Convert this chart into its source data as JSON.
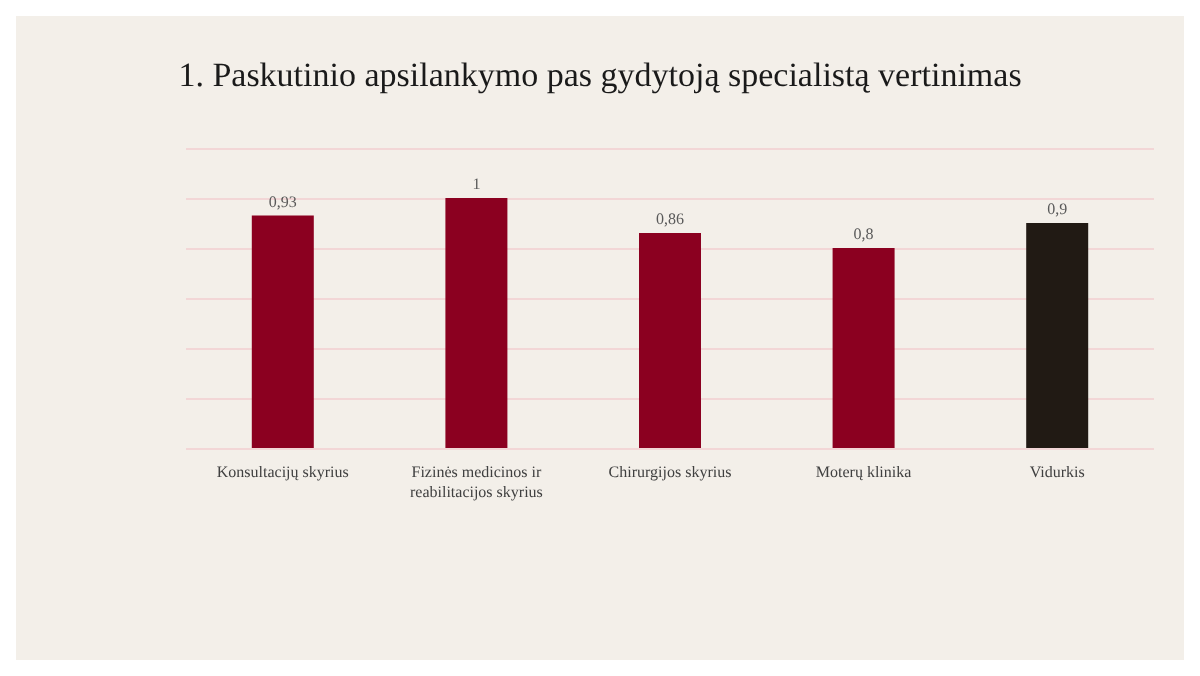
{
  "chart_data": {
    "type": "bar",
    "title": "1. Paskutinio apsilankymo pas gydytoją specialistą vertinimas",
    "categories": [
      "Konsultacijų skyrius",
      "Fizinės medicinos ir\nreabilitacijos skyrius",
      "Chirurgijos skyrius",
      "Moterų klinika",
      "Vidurkis"
    ],
    "values": [
      0.93,
      1,
      0.86,
      0.8,
      0.9
    ],
    "colors": [
      "#8b0020",
      "#8b0020",
      "#8b0020",
      "#8b0020",
      "#211a14"
    ],
    "value_labels": [
      "0,93",
      "1",
      "0,86",
      "0,8",
      "0,9"
    ],
    "ylim": [
      0,
      1.2
    ],
    "yticks": [
      {
        "value": 0,
        "label": null
      },
      {
        "value": 0.2,
        "label": null
      },
      {
        "value": 0.4,
        "label": null
      },
      {
        "value": 0.6,
        "label": null
      },
      {
        "value": 0.8,
        "label": null
      },
      {
        "value": 1,
        "label": null
      },
      {
        "value": 1.2,
        "label": null
      }
    ],
    "tick_labels": "x",
    "grid": "y"
  }
}
